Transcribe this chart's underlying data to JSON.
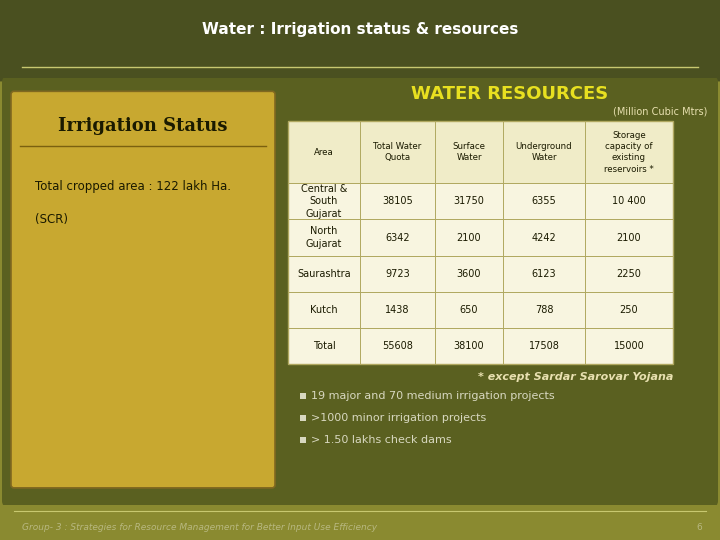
{
  "title": "Water : Irrigation status & resources",
  "bg_color": "#8a8a30",
  "header_bg": "#4a5020",
  "content_bg": "#5a6020",
  "left_panel_bg": "#c8a830",
  "table_header_bg": "#f0ecc8",
  "table_row_bg": "#f8f5e0",
  "table_border": "#b0a860",
  "water_resources_title": "WATER RESOURCES",
  "water_resources_subtitle": "(Million Cubic Mtrs)",
  "irrigation_status_title": "Irrigation Status",
  "irrigation_status_text1": "Total cropped area : 122 lakh Ha.",
  "irrigation_status_text2": "(SCR)",
  "table_headers": [
    "Area",
    "Total Water\nQuota",
    "Surface\nWater",
    "Underground\nWater",
    "Storage\ncapacity of\nexisting\nreservoirs *"
  ],
  "table_rows": [
    [
      "Central &\nSouth\nGujarat",
      "38105",
      "31750",
      "6355",
      "10 400"
    ],
    [
      "North\nGujarat",
      "6342",
      "2100",
      "4242",
      "2100"
    ],
    [
      "Saurashtra",
      "9723",
      "3600",
      "6123",
      "2250"
    ],
    [
      "Kutch",
      "1438",
      "650",
      "788",
      "250"
    ],
    [
      "Total",
      "55608",
      "38100",
      "17508",
      "15000"
    ]
  ],
  "footnote": "* except Sardar Sarovar Yojana",
  "bullets": [
    "19 major and 70 medium irrigation projects",
    ">1000 minor irrigation projects",
    "> 1.50 lakhs check dams"
  ],
  "footer_text": "Group- 3 : Strategies for Resource Management for Better Input Use Efficiency",
  "title_color": "#ffffff",
  "water_res_title_color": "#e8e020",
  "irr_status_title_color": "#1a1a00",
  "left_text_color": "#1a1a00",
  "table_header_text_color": "#1a1a00",
  "table_data_color": "#1a1a00",
  "footnote_color": "#e8e0b0",
  "bullet_color": "#d8d8c0",
  "footer_color": "#b8b880",
  "separator_color": "#c8c870",
  "page_num_color": "#b8b880"
}
